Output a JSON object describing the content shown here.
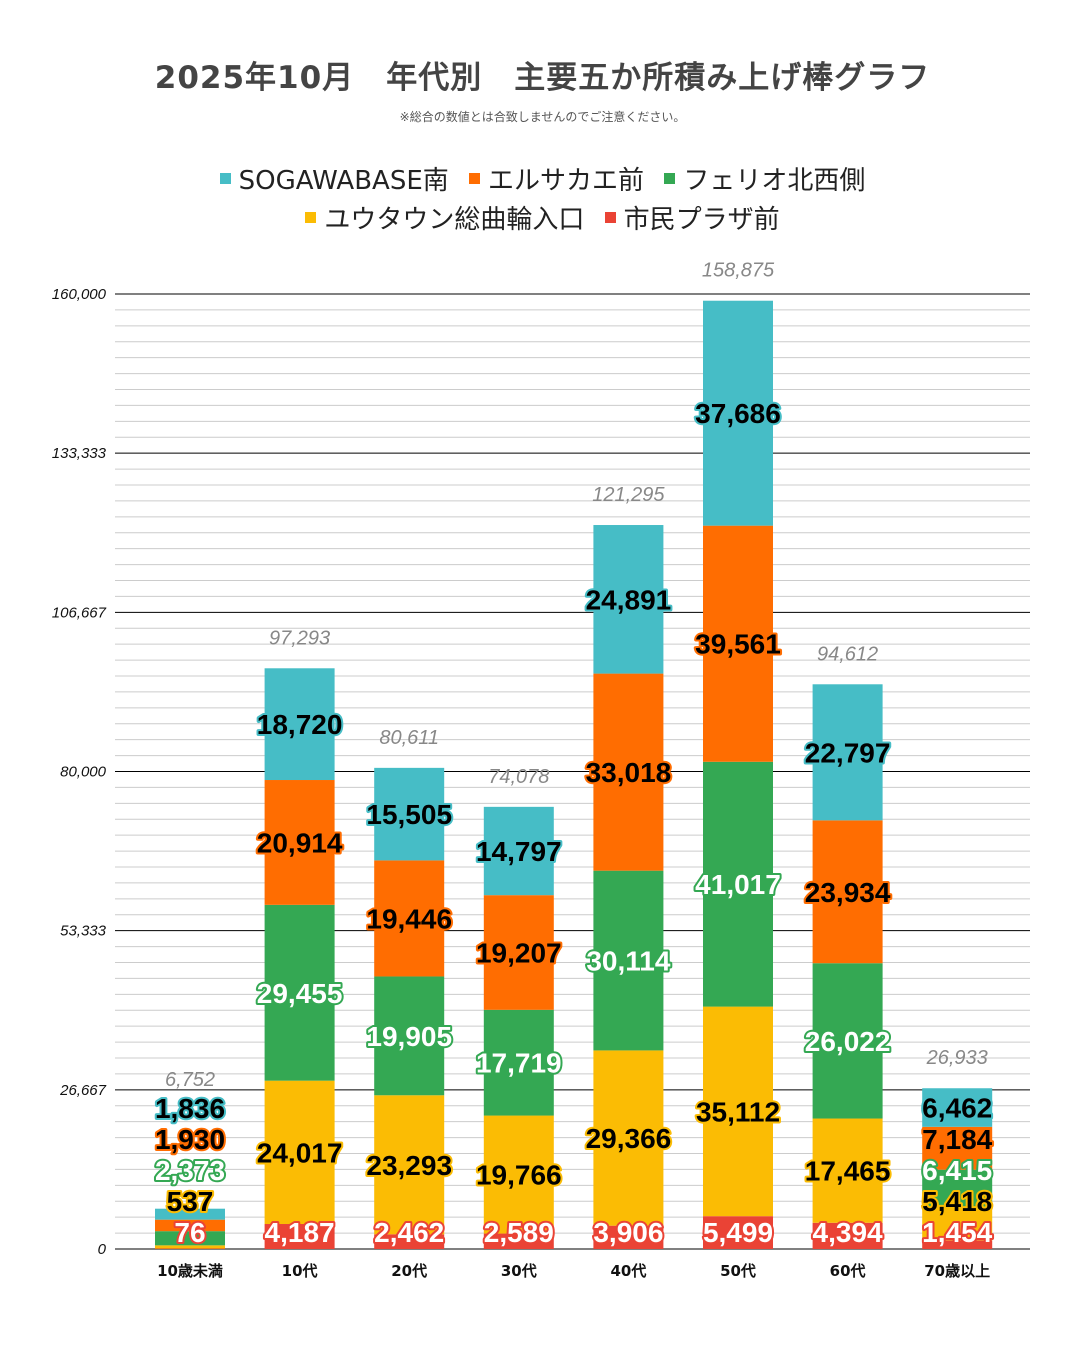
{
  "chart_data": {
    "type": "bar",
    "stacked": true,
    "title": "2025年10月　年代別　主要五か所積み上げ棒グラフ",
    "subtitle": "※総合の数値とは合致しませんのでご注意ください。",
    "legend_position": "top",
    "categories": [
      "10歳未満",
      "10代",
      "20代",
      "30代",
      "40代",
      "50代",
      "60代",
      "70歳以上"
    ],
    "series": [
      {
        "name": "市民プラザ前",
        "color": "#EA4335",
        "values": [
          76,
          4187,
          2462,
          2589,
          3906,
          5499,
          4394,
          1454
        ]
      },
      {
        "name": "ユウタウン総曲輪入口",
        "color": "#FBBC04",
        "values": [
          537,
          24017,
          23293,
          19766,
          29366,
          35112,
          17465,
          5418
        ]
      },
      {
        "name": "フェリオ北西側",
        "color": "#34A853",
        "values": [
          2373,
          29455,
          19905,
          17719,
          30114,
          41017,
          26022,
          6415
        ]
      },
      {
        "name": "エルサカエ前",
        "color": "#FF6D01",
        "values": [
          1930,
          20914,
          19446,
          19207,
          33018,
          39561,
          23934,
          7184
        ]
      },
      {
        "name": "SOGAWABASE南",
        "color": "#46BDC6",
        "values": [
          1836,
          18720,
          15505,
          14797,
          24891,
          37686,
          22797,
          6462
        ]
      }
    ],
    "legend_order": [
      4,
      3,
      2,
      1,
      0
    ],
    "totals": [
      6752,
      97293,
      80611,
      74078,
      121295,
      158875,
      94612,
      26933
    ],
    "ylim": [
      0,
      160000
    ],
    "yticks": [
      0,
      26667,
      53333,
      80000,
      106667,
      133333,
      160000
    ],
    "ytick_labels": [
      "0",
      "26,667",
      "53,333",
      "80,000",
      "106,667",
      "133,333",
      "160,000"
    ],
    "grid": true,
    "xlabel": "",
    "ylabel": ""
  }
}
